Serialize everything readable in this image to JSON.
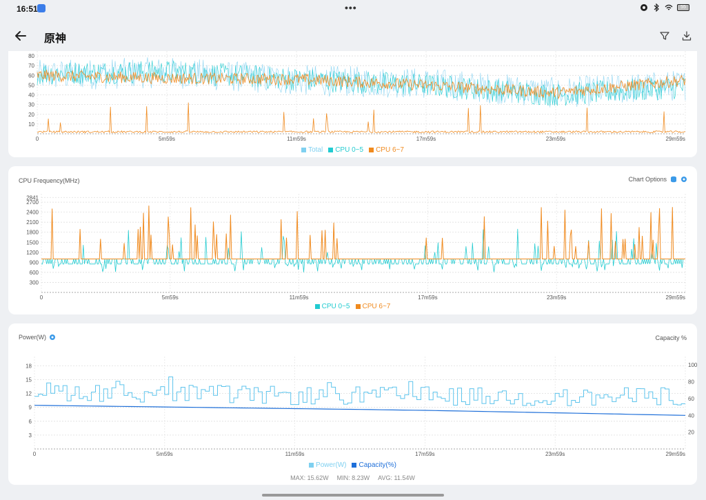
{
  "status": {
    "time": "16:51",
    "battery": "55"
  },
  "header": {
    "title": "原神"
  },
  "cpu_usage": {
    "legend": [
      {
        "label": "Total",
        "color": "#7fd0f0"
      },
      {
        "label": "CPU 0~5",
        "color": "#22cbd0"
      },
      {
        "label": "CPU 6~7",
        "color": "#f08a1e"
      }
    ],
    "y_ticks": [
      "10",
      "20",
      "30",
      "40",
      "50",
      "60",
      "70",
      "80"
    ],
    "x_ticks": [
      "0",
      "5m59s",
      "11m59s",
      "17m59s",
      "23m59s",
      "29m59s"
    ]
  },
  "cpu_freq": {
    "title": "CPU Frequency(MHz)",
    "chart_options_label": "Chart Options",
    "legend": [
      {
        "label": "CPU 0~5",
        "color": "#22cbd0"
      },
      {
        "label": "CPU 6~7",
        "color": "#f08a1e"
      }
    ],
    "y_ticks": [
      "300",
      "600",
      "900",
      "1200",
      "1500",
      "1800",
      "2100",
      "2400",
      "2700",
      "2841"
    ],
    "x_ticks": [
      "0",
      "5m59s",
      "11m59s",
      "17m59s",
      "23m59s",
      "29m59s"
    ]
  },
  "power": {
    "title": "Power(W)",
    "right_label": "Capacity %",
    "legend": [
      {
        "label": "Power(W)",
        "color": "#7fd0f0"
      },
      {
        "label": "Capacity(%)",
        "color": "#1e6fd9"
      }
    ],
    "y_ticks_left": [
      "3",
      "6",
      "9",
      "12",
      "15",
      "18"
    ],
    "y_ticks_right": [
      "20",
      "40",
      "60",
      "80",
      "100"
    ],
    "x_ticks": [
      "0",
      "5m59s",
      "11m59s",
      "17m59s",
      "23m59s",
      "29m59s"
    ],
    "stats": {
      "max": "MAX: 15.62W",
      "min": "MIN: 8.23W",
      "avg": "AVG: 11.54W"
    }
  },
  "chart_data": [
    {
      "type": "line",
      "xlabel": "",
      "ylabel": "",
      "ylim": [
        0,
        85
      ],
      "x": [
        "0",
        "5m59s",
        "11m59s",
        "17m59s",
        "23m59s",
        "29m59s"
      ],
      "series": [
        {
          "name": "Total",
          "values": [
            60,
            63,
            55,
            52,
            42,
            50
          ]
        },
        {
          "name": "CPU 0~5",
          "values": [
            62,
            64,
            56,
            50,
            40,
            48
          ]
        },
        {
          "name": "CPU 6~7",
          "values": [
            60,
            57,
            56,
            50,
            42,
            55
          ]
        }
      ]
    },
    {
      "type": "line",
      "xlabel": "",
      "ylabel": "",
      "ylim": [
        0,
        2841
      ],
      "x": [
        "0",
        "5m59s",
        "11m59s",
        "17m59s",
        "23m59s",
        "29m59s"
      ],
      "series": [
        {
          "name": "CPU 0~5",
          "values": [
            900,
            1000,
            1000,
            1000,
            1000,
            1000
          ]
        },
        {
          "name": "CPU 6~7",
          "values": [
            1000,
            1000,
            1000,
            1000,
            1000,
            1000
          ]
        }
      ]
    },
    {
      "type": "line",
      "xlabel": "",
      "ylabel": "",
      "ylim": [
        0,
        20
      ],
      "x": [
        "0",
        "5m59s",
        "11m59s",
        "17m59s",
        "23m59s",
        "29m59s"
      ],
      "series": [
        {
          "name": "Power(W)",
          "values": [
            12.5,
            12,
            11.5,
            11.5,
            11,
            11.5
          ]
        },
        {
          "name": "Capacity(%)",
          "values": [
            52,
            50,
            48,
            46,
            43,
            40
          ]
        }
      ]
    }
  ]
}
